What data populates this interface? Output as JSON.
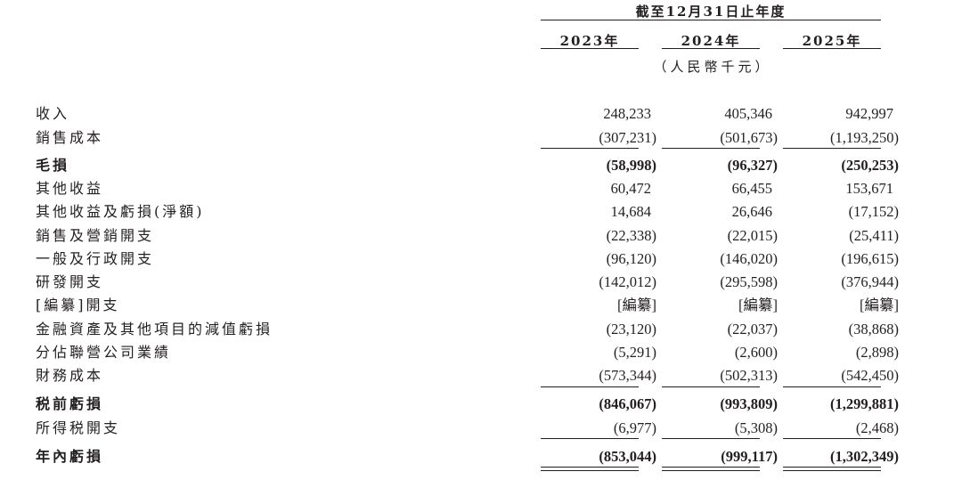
{
  "header": {
    "period": "截至12月31日止年度",
    "years": [
      "2023年",
      "2024年",
      "2025年"
    ],
    "unit": "（人民幣千元）"
  },
  "rows": [
    {
      "label": "收入",
      "values": [
        "248,233",
        "405,346",
        "942,997"
      ],
      "bold": false
    },
    {
      "label": "銷售成本",
      "values": [
        "(307,231)",
        "(501,673)",
        "(1,193,250)"
      ],
      "bold": false
    },
    {
      "label": "毛損",
      "values": [
        "(58,998)",
        "(96,327)",
        "(250,253)"
      ],
      "bold": true
    },
    {
      "label": "其他收益",
      "values": [
        "60,472",
        "66,455",
        "153,671"
      ],
      "bold": false
    },
    {
      "label": "其他收益及虧損(淨額)",
      "values": [
        "14,684",
        "26,646",
        "(17,152)"
      ],
      "bold": false
    },
    {
      "label": "銷售及營銷開支",
      "values": [
        "(22,338)",
        "(22,015)",
        "(25,411)"
      ],
      "bold": false
    },
    {
      "label": "一般及行政開支",
      "values": [
        "(96,120)",
        "(146,020)",
        "(196,615)"
      ],
      "bold": false
    },
    {
      "label": "研發開支",
      "values": [
        "(142,012)",
        "(295,598)",
        "(376,944)"
      ],
      "bold": false
    },
    {
      "label": "[編纂]開支",
      "values": [
        "[編纂]",
        "[編纂]",
        "[編纂]"
      ],
      "bold": false
    },
    {
      "label": "金融資產及其他項目的減值虧損",
      "values": [
        "(23,120)",
        "(22,037)",
        "(38,868)"
      ],
      "bold": false
    },
    {
      "label": "分佔聯營公司業績",
      "values": [
        "(5,291)",
        "(2,600)",
        "(2,898)"
      ],
      "bold": false
    },
    {
      "label": "財務成本",
      "values": [
        "(573,344)",
        "(502,313)",
        "(542,450)"
      ],
      "bold": false
    },
    {
      "label": "税前虧損",
      "values": [
        "(846,067)",
        "(993,809)",
        "(1,299,881)"
      ],
      "bold": true
    },
    {
      "label": "所得税開支",
      "values": [
        "(6,977)",
        "(5,308)",
        "(2,468)"
      ],
      "bold": false
    },
    {
      "label": "年內虧損",
      "values": [
        "(853,044)",
        "(999,117)",
        "(1,302,349)"
      ],
      "bold": true
    }
  ]
}
